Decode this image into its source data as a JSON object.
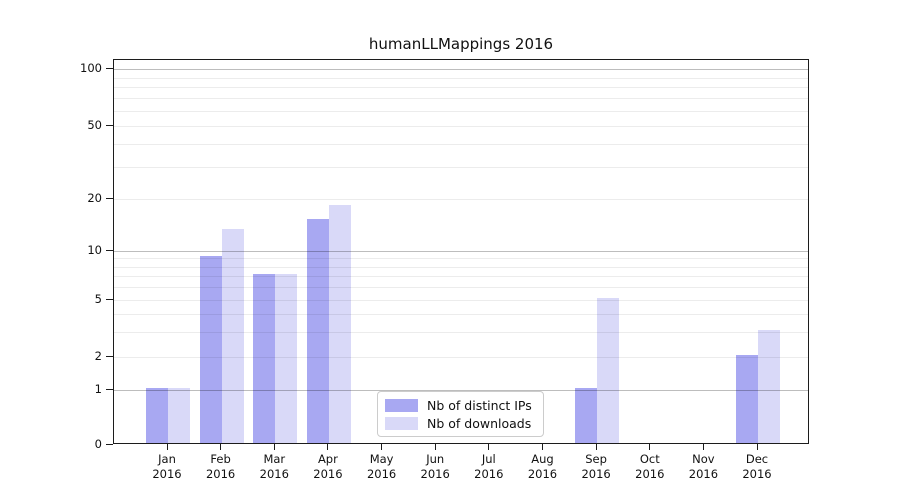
{
  "chart_data": {
    "type": "bar",
    "title": "humanLLMappings 2016",
    "categories": [
      "Jan 2016",
      "Feb 2016",
      "Mar 2016",
      "Apr 2016",
      "May 2016",
      "Jun 2016",
      "Jul 2016",
      "Aug 2016",
      "Sep 2016",
      "Oct 2016",
      "Nov 2016",
      "Dec 2016"
    ],
    "series": [
      {
        "name": "Nb of distinct IPs",
        "color": "#a8a8f2",
        "values": [
          1,
          9,
          7,
          15,
          0,
          0,
          0,
          0,
          1,
          0,
          0,
          2
        ]
      },
      {
        "name": "Nb of downloads",
        "color": "#d9d9f8",
        "values": [
          1,
          13,
          7,
          18,
          0,
          0,
          0,
          0,
          5,
          0,
          0,
          3
        ]
      }
    ],
    "xlabel": "",
    "ylabel": "",
    "y_ticks": [
      0,
      1,
      2,
      5,
      10,
      20,
      50,
      100
    ],
    "ylim": [
      0,
      110
    ],
    "yscale": "log-like (0 shown at baseline)",
    "grid": "horizontal major at 1/10/100, faint minors at 2-9 and 20-90, drawn over bars",
    "legend_position": "lower center inside plot"
  }
}
